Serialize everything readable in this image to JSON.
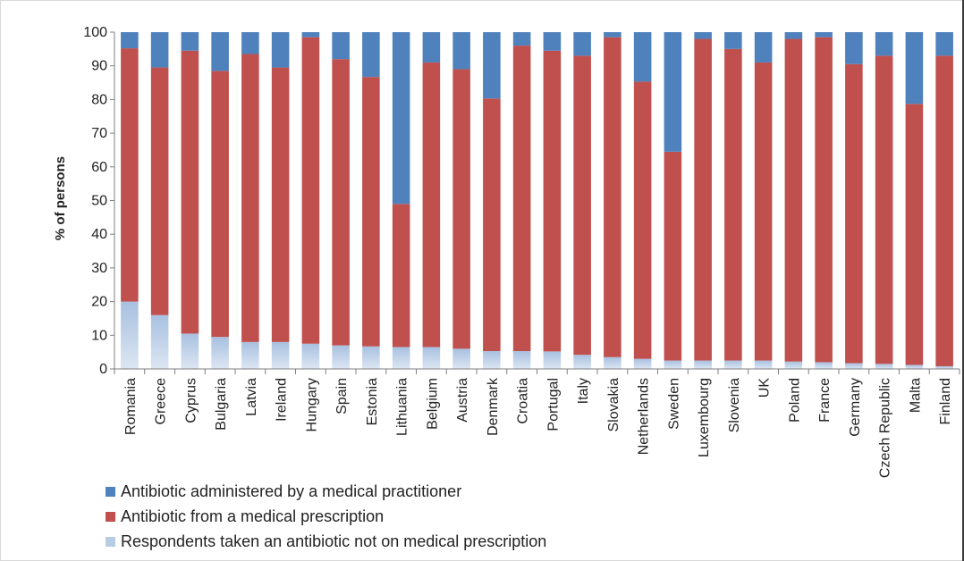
{
  "chart_data": {
    "type": "bar",
    "stacked": true,
    "ylabel": "% of persons",
    "xlabel": "",
    "ylim": [
      0,
      100
    ],
    "yticks": [
      0,
      10,
      20,
      30,
      40,
      50,
      60,
      70,
      80,
      90,
      100
    ],
    "grid": false,
    "legend_position": "bottom-left",
    "categories": [
      "Romania",
      "Greece",
      "Cyprus",
      "Bulgaria",
      "Latvia",
      "Ireland",
      "Hungary",
      "Spain",
      "Estonia",
      "Lithuania",
      "Belgium",
      "Austria",
      "Denmark",
      "Croatia",
      "Portugal",
      "Italy",
      "Slovakia",
      "Netherlands",
      "Sweden",
      "Luxembourg",
      "Slovenia",
      "UK",
      "Poland",
      "France",
      "Germany",
      "Czech Republic",
      "Malta",
      "Finland"
    ],
    "series": [
      {
        "name": "Respondents taken an antibiotic not on medical prescription",
        "color": "#b8cce4",
        "values": [
          20,
          16,
          10.5,
          9.5,
          8,
          8,
          7.5,
          7,
          6.7,
          6.5,
          6.5,
          6,
          5.3,
          5.3,
          5.2,
          4.2,
          3.5,
          3,
          2.5,
          2.5,
          2.5,
          2.5,
          2.2,
          2,
          1.7,
          1.5,
          1.2,
          0.8
        ]
      },
      {
        "name": "Antibiotic from a medical prescription",
        "color": "#c0504d",
        "values": [
          75.2,
          73.5,
          84,
          79,
          85.5,
          81.5,
          91,
          85,
          80,
          42.5,
          84.5,
          83,
          75,
          90.7,
          89.3,
          88.8,
          95,
          82.3,
          62,
          95.5,
          92.5,
          88.5,
          95.8,
          96.5,
          88.8,
          91.5,
          77.5,
          92.2
        ]
      },
      {
        "name": "Antibiotic administered by a medical practitioner",
        "color": "#4f81bd",
        "values": [
          4.8,
          10.5,
          5.5,
          11.5,
          6.5,
          10.5,
          1.5,
          8,
          13.3,
          51,
          9,
          11,
          19.7,
          4,
          5.5,
          7,
          1.5,
          14.7,
          35.5,
          2,
          5,
          9,
          2,
          1.5,
          9.5,
          7,
          21.3,
          7
        ]
      }
    ]
  },
  "legend": {
    "items": [
      {
        "label": "Antibiotic administered by a medical practitioner",
        "color": "#4f81bd"
      },
      {
        "label": "Antibiotic from a medical prescription",
        "color": "#c0504d"
      },
      {
        "label": "Respondents taken an antibiotic not on medical prescription",
        "color": "#b8cce4"
      }
    ]
  }
}
